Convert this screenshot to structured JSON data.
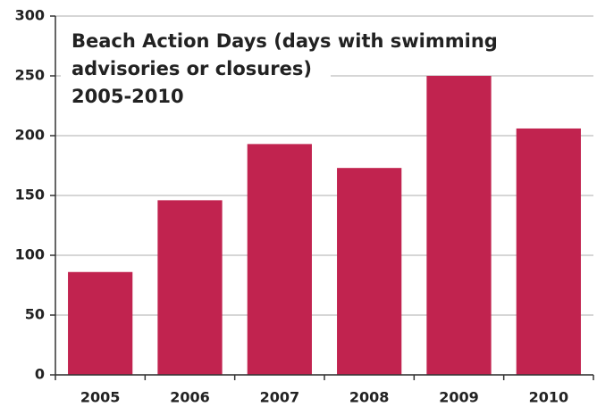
{
  "chart_data": {
    "type": "bar",
    "title": [
      "Beach Action Days (days with swimming",
      "advisories or closures)",
      "2005-2010"
    ],
    "categories": [
      "2005",
      "2006",
      "2007",
      "2008",
      "2009",
      "2010"
    ],
    "values": [
      86,
      146,
      193,
      173,
      250,
      206
    ],
    "color": "#c1234f",
    "ylim": [
      0,
      300
    ],
    "yticks": [
      0,
      50,
      100,
      150,
      200,
      250,
      300
    ],
    "grid": true
  }
}
